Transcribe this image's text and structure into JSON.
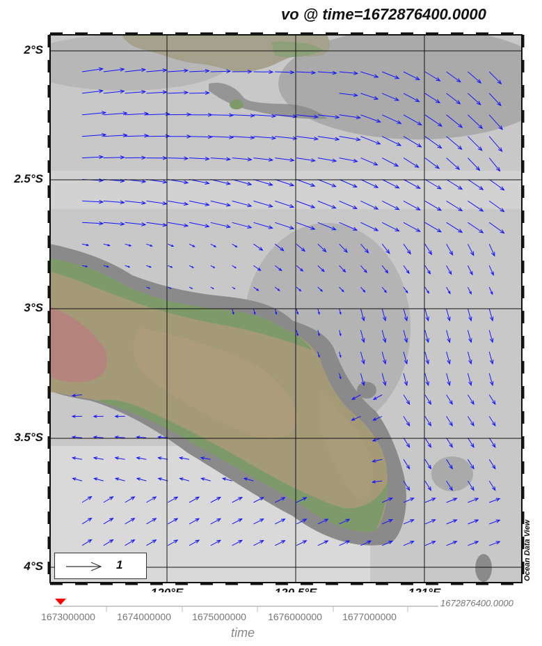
{
  "title": "vo @ time=1672876400.0000",
  "map": {
    "lat_labels": [
      "2°S",
      "2.5°S",
      "3°S",
      "3.5°S",
      "4°S"
    ],
    "lon_labels": [
      "120°E",
      "120.5°E",
      "121°E"
    ],
    "colors": {
      "vector": "#1414ff",
      "land_low": "#7e9a6a",
      "land_mid": "#a59b7c",
      "land_high": "#b5847c",
      "ocean_light": "#d4d4d4",
      "ocean_dark": "#9a9a9a",
      "grid": "#111111"
    }
  },
  "legend": {
    "value": "1"
  },
  "watermark": "Ocean Data View",
  "timeline": {
    "ticks": [
      "1673000000",
      "1674000000",
      "1675000000",
      "1676000000",
      "1677000000"
    ],
    "current_value": "1672876400.0000",
    "axis_label": "time",
    "marker_color": "#ff0000"
  }
}
